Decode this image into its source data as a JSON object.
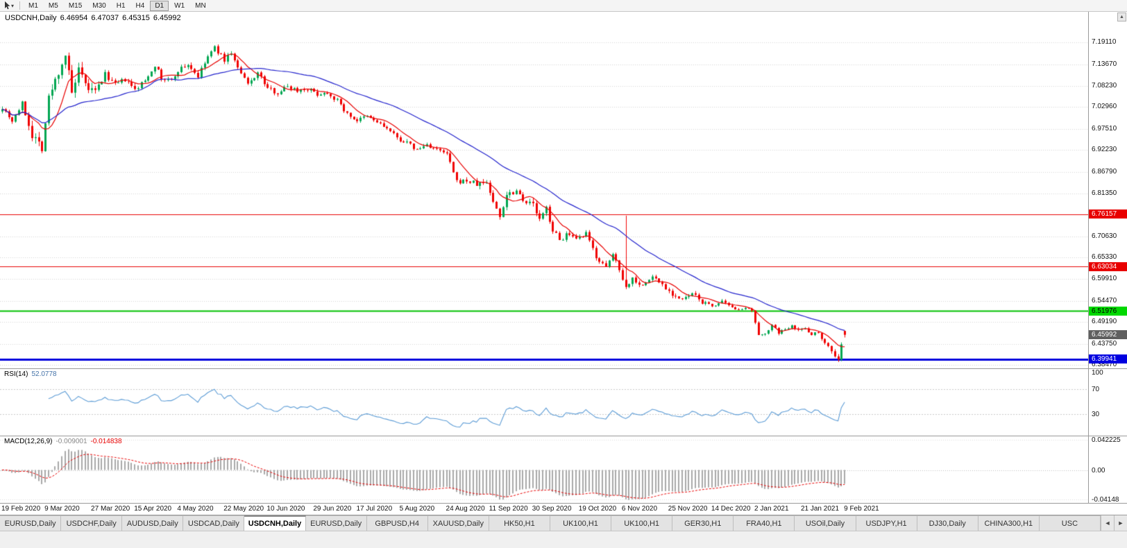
{
  "toolbar": {
    "cursor_caret": "▾",
    "timeframes": [
      "M1",
      "M5",
      "M15",
      "M30",
      "H1",
      "H4",
      "D1",
      "W1",
      "MN"
    ],
    "active_timeframe": "D1"
  },
  "chart": {
    "title": "USDCNH,Daily",
    "ohlc": {
      "open": "6.46954",
      "high": "6.47037",
      "low": "6.45315",
      "close": "6.45992"
    },
    "scroll_up_glyph": "▲",
    "price_axis": {
      "grid_labels": [
        "7.19110",
        "7.13670",
        "7.08230",
        "7.02960",
        "6.97510",
        "6.92230",
        "6.86790",
        "6.81350",
        "6.70630",
        "6.65330",
        "6.59910",
        "6.54470",
        "6.49190",
        "6.43750",
        "6.38470"
      ],
      "badges": [
        {
          "label": "6.76157",
          "price": 6.76157,
          "bg": "#e80000",
          "fg": "#ffffff"
        },
        {
          "label": "6.63034",
          "price": 6.63034,
          "bg": "#e80000",
          "fg": "#ffffff"
        },
        {
          "label": "6.51976",
          "price": 6.51976,
          "bg": "#00d800",
          "fg": "#000000"
        },
        {
          "label": "6.45992",
          "price": 6.45992,
          "bg": "#5f5f5f",
          "fg": "#ffffff"
        },
        {
          "label": "6.39941",
          "price": 6.39941,
          "bg": "#0000e0",
          "fg": "#ffffff"
        }
      ]
    }
  },
  "rsi": {
    "name": "RSI(14)",
    "value": "52.0778",
    "axis_labels": [
      {
        "v": 100,
        "label": "100"
      },
      {
        "v": 70,
        "label": "70"
      },
      {
        "v": 30,
        "label": "30"
      }
    ]
  },
  "macd": {
    "name": "MACD(12,26,9)",
    "value_main": "-0.009001",
    "value_signal": "-0.014838",
    "axis_labels": [
      {
        "v": 0.042225,
        "label": "0.042225"
      },
      {
        "v": 0,
        "label": "0.00"
      },
      {
        "v": -0.04148,
        "label": "-0.04148"
      }
    ]
  },
  "date_axis": [
    "19 Feb 2020",
    "9 Mar 2020",
    "27 Mar 2020",
    "15 Apr 2020",
    "4 May 2020",
    "22 May 2020",
    "10 Jun 2020",
    "29 Jun 2020",
    "17 Jul 2020",
    "5 Aug 2020",
    "24 Aug 2020",
    "11 Sep 2020",
    "30 Sep 2020",
    "19 Oct 2020",
    "6 Nov 2020",
    "25 Nov 2020",
    "14 Dec 2020",
    "2 Jan 2021",
    "21 Jan 2021",
    "9 Feb 2021"
  ],
  "tabs": {
    "items": [
      "EURUSD,Daily",
      "USDCHF,Daily",
      "AUDUSD,Daily",
      "USDCAD,Daily",
      "USDCNH,Daily",
      "EURUSD,Daily",
      "GBPUSD,H4",
      "XAUUSD,Daily",
      "HK50,H1",
      "UK100,H1",
      "UK100,H1",
      "GER30,H1",
      "FRA40,H1",
      "USOil,Daily",
      "USDJPY,H1",
      "DJ30,Daily",
      "CHINA300,H1",
      "USC"
    ],
    "active_index": 4,
    "scroll_left": "◄",
    "scroll_right": "►"
  },
  "chart_data": {
    "type": "candlestick",
    "symbol": "USDCNH",
    "timeframe": "Daily",
    "candle_count": 255,
    "plot_price_range": [
      6.376,
      7.268
    ],
    "last_candle": {
      "open": 6.46954,
      "high": 6.47037,
      "low": 6.45315,
      "close": 6.45992
    },
    "close_anchors": [
      [
        0,
        7.03
      ],
      [
        3,
        6.996
      ],
      [
        6,
        7.038
      ],
      [
        9,
        6.962
      ],
      [
        12,
        6.93
      ],
      [
        14,
        7.052
      ],
      [
        17,
        7.118
      ],
      [
        19,
        7.162
      ],
      [
        21,
        7.062
      ],
      [
        23,
        7.118
      ],
      [
        25,
        7.082
      ],
      [
        28,
        7.065
      ],
      [
        31,
        7.112
      ],
      [
        34,
        7.085
      ],
      [
        37,
        7.098
      ],
      [
        40,
        7.072
      ],
      [
        43,
        7.096
      ],
      [
        46,
        7.136
      ],
      [
        48,
        7.1
      ],
      [
        51,
        7.096
      ],
      [
        53,
        7.122
      ],
      [
        56,
        7.136
      ],
      [
        59,
        7.106
      ],
      [
        62,
        7.156
      ],
      [
        64,
        7.178
      ],
      [
        67,
        7.148
      ],
      [
        69,
        7.166
      ],
      [
        71,
        7.126
      ],
      [
        74,
        7.086
      ],
      [
        77,
        7.116
      ],
      [
        80,
        7.076
      ],
      [
        83,
        7.066
      ],
      [
        86,
        7.082
      ],
      [
        89,
        7.072
      ],
      [
        92,
        7.076
      ],
      [
        95,
        7.062
      ],
      [
        98,
        7.066
      ],
      [
        101,
        7.046
      ],
      [
        104,
        7.012
      ],
      [
        107,
        6.996
      ],
      [
        110,
        7.006
      ],
      [
        113,
        6.992
      ],
      [
        116,
        6.976
      ],
      [
        119,
        6.952
      ],
      [
        122,
        6.94
      ],
      [
        125,
        6.922
      ],
      [
        128,
        6.936
      ],
      [
        131,
        6.922
      ],
      [
        134,
        6.912
      ],
      [
        137,
        6.842
      ],
      [
        140,
        6.846
      ],
      [
        143,
        6.836
      ],
      [
        146,
        6.842
      ],
      [
        148,
        6.792
      ],
      [
        150,
        6.756
      ],
      [
        152,
        6.812
      ],
      [
        155,
        6.822
      ],
      [
        158,
        6.792
      ],
      [
        160,
        6.786
      ],
      [
        162,
        6.746
      ],
      [
        164,
        6.776
      ],
      [
        166,
        6.722
      ],
      [
        168,
        6.696
      ],
      [
        170,
        6.712
      ],
      [
        173,
        6.696
      ],
      [
        176,
        6.712
      ],
      [
        179,
        6.656
      ],
      [
        182,
        6.626
      ],
      [
        184,
        6.662
      ],
      [
        186,
        6.626
      ],
      [
        188,
        6.578
      ],
      [
        190,
        6.602
      ],
      [
        193,
        6.582
      ],
      [
        196,
        6.606
      ],
      [
        199,
        6.586
      ],
      [
        202,
        6.562
      ],
      [
        205,
        6.546
      ],
      [
        208,
        6.562
      ],
      [
        211,
        6.542
      ],
      [
        214,
        6.532
      ],
      [
        217,
        6.542
      ],
      [
        220,
        6.526
      ],
      [
        223,
        6.526
      ],
      [
        226,
        6.52
      ],
      [
        228,
        6.456
      ],
      [
        230,
        6.466
      ],
      [
        232,
        6.482
      ],
      [
        234,
        6.466
      ],
      [
        236,
        6.472
      ],
      [
        238,
        6.486
      ],
      [
        240,
        6.472
      ],
      [
        242,
        6.476
      ],
      [
        244,
        6.462
      ],
      [
        246,
        6.466
      ],
      [
        248,
        6.442
      ],
      [
        250,
        6.42
      ],
      [
        252,
        6.396
      ],
      [
        253,
        6.438
      ],
      [
        254,
        6.4599
      ]
    ],
    "spike": {
      "index": 188,
      "high": 6.758
    },
    "volatility_segments": [
      [
        0,
        8,
        0.013
      ],
      [
        8,
        30,
        0.026
      ],
      [
        30,
        60,
        0.013
      ],
      [
        60,
        95,
        0.012
      ],
      [
        95,
        140,
        0.011
      ],
      [
        140,
        170,
        0.016
      ],
      [
        170,
        212,
        0.012
      ],
      [
        212,
        246,
        0.008
      ],
      [
        246,
        255,
        0.012
      ]
    ],
    "hlines": [
      {
        "price": 6.76157,
        "color": "#e80000",
        "width": 1
      },
      {
        "price": 6.63034,
        "color": "#e80000",
        "width": 1
      },
      {
        "price": 6.51976,
        "color": "#00c000",
        "width": 2
      },
      {
        "price": 6.39941,
        "color": "#0000dd",
        "width": 3
      }
    ],
    "moving_averages": [
      {
        "period": 8,
        "color": "#e80000"
      },
      {
        "period": 34,
        "color": "#2222cc"
      }
    ],
    "bull_color": "#00a651",
    "bear_color": "#f00000",
    "rsi": {
      "period": 14,
      "color": "#5b9bd5",
      "levels": [
        70,
        30
      ],
      "range": [
        0,
        100
      ]
    },
    "macd": {
      "fast": 12,
      "slow": 26,
      "signal": 9,
      "histogram_color": "#a8a8a8",
      "signal_color": "#e80000",
      "range": [
        -0.0425,
        0.0435
      ]
    },
    "date_tick_indices": [
      0,
      13,
      27,
      40,
      53,
      67,
      80,
      94,
      107,
      120,
      134,
      147,
      160,
      174,
      187,
      201,
      214,
      227,
      241,
      254
    ]
  }
}
